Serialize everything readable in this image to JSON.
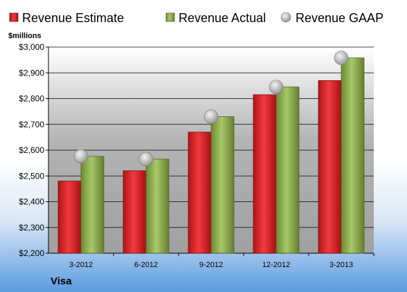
{
  "chart_data": {
    "type": "bar",
    "ylabel": "$millions",
    "categories": [
      "3-2012",
      "6-2012",
      "9-2012",
      "12-2012",
      "3-2013"
    ],
    "series": [
      {
        "name": "Revenue Estimate",
        "kind": "bar",
        "color": "#dd1b22",
        "values": [
          2480,
          2520,
          2670,
          2815,
          2870
        ]
      },
      {
        "name": "Revenue Actual",
        "kind": "bar",
        "color": "#8fb04e",
        "values": [
          2576,
          2565,
          2730,
          2845,
          2958
        ]
      },
      {
        "name": "Revenue GAAP",
        "kind": "marker",
        "color": "#c8c8c8",
        "values": [
          2576,
          2565,
          2730,
          2845,
          2958
        ]
      }
    ],
    "ylim": [
      2200,
      3000
    ],
    "yticks": [
      "$2,200",
      "$2,300",
      "$2,400",
      "$2,500",
      "$2,600",
      "$2,700",
      "$2,800",
      "$2,900",
      "$3,000"
    ],
    "legend_position": "top",
    "grid": true,
    "footer": "Visa"
  }
}
